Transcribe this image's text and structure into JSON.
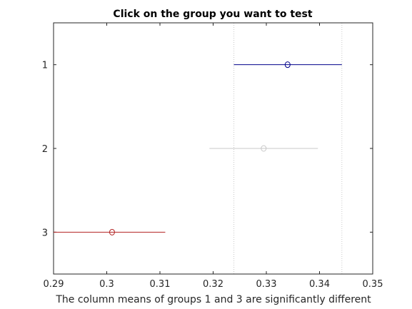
{
  "chart_data": {
    "type": "multiple-comparison-interval-plot",
    "title": "Click on the group you want to test",
    "xlabel": "The column means of groups 1 and 3 are significantly different",
    "ylabel": "",
    "xlim": [
      0.29,
      0.35
    ],
    "ylim": [
      0.5,
      3.5
    ],
    "x_ticks": [
      "0.29",
      "0.3",
      "0.31",
      "0.32",
      "0.33",
      "0.34",
      "0.35"
    ],
    "y_ticks": [
      "1",
      "2",
      "3"
    ],
    "groups": [
      {
        "label": "1",
        "mean": 0.334,
        "lower": 0.3239,
        "upper": 0.3442,
        "color": "#00008b",
        "status": "selected"
      },
      {
        "label": "2",
        "mean": 0.3295,
        "lower": 0.3193,
        "upper": 0.3397,
        "color": "#c8c8c8",
        "status": "not significantly different"
      },
      {
        "label": "3",
        "mean": 0.301,
        "lower": 0.29,
        "upper": 0.311,
        "color": "#b22222",
        "status": "significantly different"
      }
    ],
    "reference_lines": [
      0.3239,
      0.3442
    ],
    "reference_line_style": "dotted",
    "grid": false
  },
  "colors": {
    "axis": "#262626",
    "reference": "#c8c8c8",
    "background": "#ffffff"
  }
}
